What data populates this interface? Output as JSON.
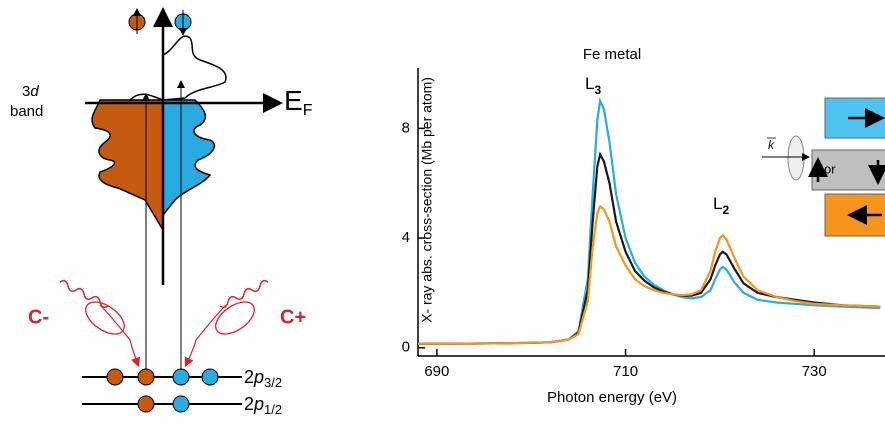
{
  "chart_data": {
    "type": "line",
    "title": "Fe metal",
    "xlabel": "Photon energy (eV)",
    "ylabel": "X- ray  abs. cross-section (Mb per atom)",
    "xlim": [
      688,
      737.5
    ],
    "ylim": [
      -0.3,
      10.2
    ],
    "xticks": [
      690,
      710,
      730
    ],
    "yticks": [
      0,
      4,
      8
    ],
    "x": [
      688,
      692,
      696,
      700,
      702,
      704,
      705,
      706,
      706.5,
      707,
      707.3,
      707.7,
      708.3,
      709,
      710,
      711,
      712,
      713,
      714,
      715,
      716,
      717,
      718,
      719,
      719.5,
      720,
      720.3,
      720.7,
      721.5,
      722.5,
      724,
      726,
      728,
      730,
      733,
      737
    ],
    "series": [
      {
        "color": "#29abe2",
        "values": [
          0.15,
          0.15,
          0.16,
          0.18,
          0.2,
          0.3,
          0.6,
          2.5,
          5.5,
          8.3,
          9.0,
          8.7,
          7.5,
          5.6,
          4.0,
          3.1,
          2.6,
          2.3,
          2.1,
          1.95,
          1.85,
          1.8,
          1.85,
          2.1,
          2.5,
          2.85,
          2.95,
          2.85,
          2.4,
          2.0,
          1.75,
          1.65,
          1.6,
          1.55,
          1.5,
          1.45
        ]
      },
      {
        "color": "#1a1a1a",
        "values": [
          0.15,
          0.15,
          0.16,
          0.18,
          0.2,
          0.3,
          0.55,
          2.1,
          4.5,
          6.6,
          7.05,
          6.8,
          6.0,
          4.6,
          3.5,
          2.8,
          2.45,
          2.2,
          2.05,
          1.95,
          1.9,
          1.9,
          2.0,
          2.5,
          3.0,
          3.4,
          3.5,
          3.4,
          2.9,
          2.35,
          2.0,
          1.85,
          1.75,
          1.65,
          1.55,
          1.5
        ]
      },
      {
        "color": "#f7941d",
        "values": [
          0.15,
          0.15,
          0.16,
          0.18,
          0.2,
          0.3,
          0.5,
          1.7,
          3.6,
          4.9,
          5.15,
          5.05,
          4.6,
          3.7,
          3.0,
          2.5,
          2.25,
          2.1,
          2.0,
          1.95,
          1.92,
          1.95,
          2.1,
          2.8,
          3.5,
          4.0,
          4.1,
          3.95,
          3.3,
          2.6,
          2.1,
          1.85,
          1.7,
          1.6,
          1.55,
          1.5
        ]
      }
    ],
    "annotations": [
      {
        "main": "L",
        "sub": "3"
      },
      {
        "main": "L",
        "sub": "2"
      }
    ],
    "legend_or": "or",
    "wave_vector": "k"
  },
  "diagram": {
    "band_label": {
      "num": "3",
      "orbital": "d",
      "word": "band"
    },
    "fermi": {
      "main": "E",
      "sub": "F"
    },
    "minus": "C-",
    "plus": "C+",
    "levels": [
      {
        "main": "2",
        "orbital": "p",
        "sub": "3/2"
      },
      {
        "main": "2",
        "orbital": "p",
        "sub": "1/2"
      }
    ]
  }
}
